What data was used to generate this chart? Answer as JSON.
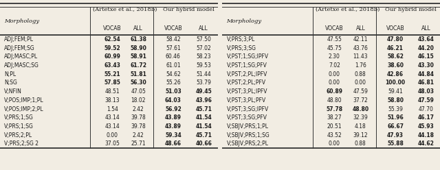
{
  "left_table": {
    "rows": [
      [
        "ADJ;FEM;PL",
        "62.54",
        "61.38",
        "58.42",
        "57.50"
      ],
      [
        "ADJ;FEM;SG",
        "59.52",
        "58.90",
        "57.61",
        "57.02"
      ],
      [
        "ADJ;MASC;PL",
        "60.99",
        "58.91",
        "60.46",
        "58.23"
      ],
      [
        "ADJ;MASC;SG",
        "63.43",
        "61.72",
        "61.01",
        "59.53"
      ],
      [
        "N;PL",
        "55.21",
        "51.81",
        "54.62",
        "51.44"
      ],
      [
        "N;SG",
        "57.85",
        "56.30",
        "55.26",
        "53.79"
      ],
      [
        "V;NFIN",
        "48.51",
        "47.05",
        "51.03",
        "49.45"
      ],
      [
        "V;POS;IMP;1;PL",
        "38.13",
        "18.02",
        "64.03",
        "43.96"
      ],
      [
        "V;POS;IMP;2;PL",
        "1.54",
        "2.42",
        "56.92",
        "45.71"
      ],
      [
        "V;PRS;1;SG",
        "43.14",
        "39.78",
        "43.89",
        "41.54"
      ],
      [
        "V;PRS;1;SG",
        "43.14",
        "39.78",
        "43.89",
        "41.54"
      ],
      [
        "V;PRS;2;PL",
        "0.00",
        "2.42",
        "59.34",
        "45.71"
      ],
      [
        "V;PRS;2;SG 2",
        "37.05",
        "25.71",
        "48.66",
        "40.66"
      ]
    ],
    "bold": [
      [
        true,
        true,
        false,
        false
      ],
      [
        true,
        true,
        false,
        false
      ],
      [
        true,
        true,
        false,
        false
      ],
      [
        true,
        true,
        false,
        false
      ],
      [
        true,
        true,
        false,
        false
      ],
      [
        true,
        true,
        false,
        false
      ],
      [
        false,
        false,
        true,
        true
      ],
      [
        false,
        false,
        true,
        true
      ],
      [
        false,
        false,
        true,
        true
      ],
      [
        false,
        false,
        true,
        true
      ],
      [
        false,
        false,
        true,
        true
      ],
      [
        false,
        false,
        true,
        true
      ],
      [
        false,
        false,
        true,
        true
      ]
    ]
  },
  "right_table": {
    "rows": [
      [
        "V;PRS;3;PL",
        "47.55",
        "42.11",
        "47.80",
        "43.64"
      ],
      [
        "V;PRS;3;SG",
        "45.75",
        "43.76",
        "46.21",
        "44.20"
      ],
      [
        "V;PST;1;SG;IPFV",
        "2.30",
        "11.43",
        "58.62",
        "46.15"
      ],
      [
        "V;PST;1;SG;PFV",
        "7.02",
        "1.76",
        "38.60",
        "43.30"
      ],
      [
        "V;PST;2;PL;IPFV",
        "0.00",
        "0.88",
        "42.86",
        "44.84"
      ],
      [
        "V;PST;2;PL;PFV",
        "0.00",
        "0.00",
        "100.00",
        "46.81"
      ],
      [
        "V;PST;3;PL;IPFV",
        "60.89",
        "47.59",
        "59.41",
        "48.03"
      ],
      [
        "V;PST;3;PL;PFV",
        "48.80",
        "37.72",
        "58.80",
        "47.59"
      ],
      [
        "V;PST;3;SG;IPFV",
        "57.78",
        "48.80",
        "55.39",
        "47.70"
      ],
      [
        "V;PST;3;SG;PFV",
        "38.27",
        "32.39",
        "51.96",
        "46.17"
      ],
      [
        "V;SBJV;PRS;1;PL",
        "20.51",
        "4.18",
        "66.67",
        "45.93"
      ],
      [
        "V;SBJV;PRS;1;SG",
        "43.52",
        "39.12",
        "47.93",
        "44.18"
      ],
      [
        "V;SBJV;PRS;2;PL",
        "0.00",
        "0.88",
        "55.88",
        "44.62"
      ]
    ],
    "bold": [
      [
        false,
        false,
        true,
        true
      ],
      [
        false,
        false,
        true,
        true
      ],
      [
        false,
        false,
        true,
        true
      ],
      [
        false,
        false,
        true,
        true
      ],
      [
        false,
        false,
        true,
        true
      ],
      [
        false,
        false,
        true,
        true
      ],
      [
        true,
        false,
        false,
        true
      ],
      [
        false,
        false,
        true,
        true
      ],
      [
        true,
        true,
        false,
        false
      ],
      [
        false,
        false,
        true,
        true
      ],
      [
        false,
        false,
        true,
        true
      ],
      [
        false,
        false,
        true,
        true
      ],
      [
        false,
        false,
        true,
        true
      ]
    ]
  },
  "bg_color": "#f2ede3",
  "text_color": "#1a1a1a",
  "line_color": "#333333",
  "header_group1": "(Artetxe et al., 2018b)",
  "header_group2": "Our hybrid model",
  "header_morph": "Morphology",
  "subheaders": [
    "VOCAB",
    "ALL",
    "VOCAB",
    "ALL"
  ]
}
